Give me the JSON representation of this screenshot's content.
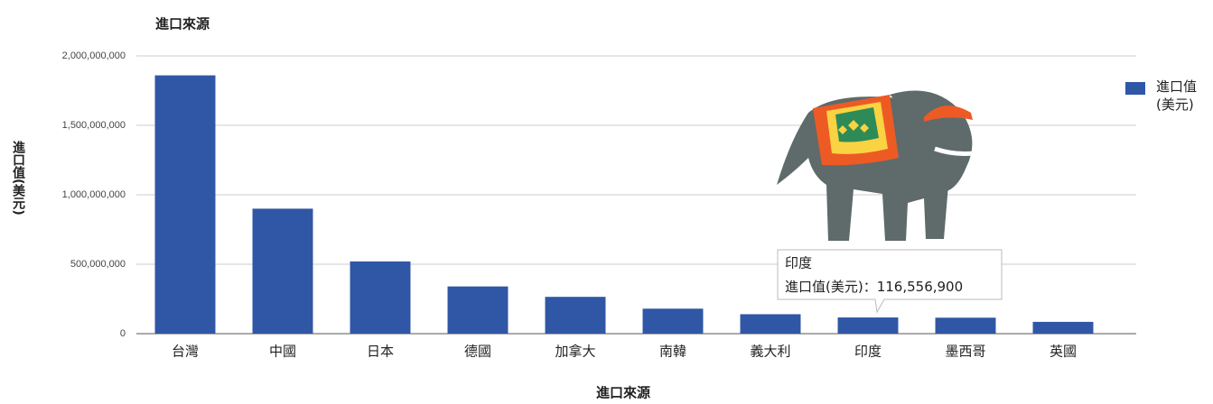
{
  "chart_data": {
    "type": "bar",
    "title": "進口來源",
    "x_label": "進口來源",
    "y_label": "進口值(美元)",
    "categories": [
      "台灣",
      "中國",
      "日本",
      "德國",
      "加拿大",
      "南韓",
      "義大利",
      "印度",
      "墨西哥",
      "英國"
    ],
    "series": [
      {
        "name": "進口值(美元)",
        "color": "#3057a6",
        "values": [
          1860000000,
          900000000,
          520000000,
          340000000,
          265000000,
          180000000,
          140000000,
          116556900,
          115000000,
          85000000
        ],
        "value_labels": [
          null,
          null,
          null,
          null,
          null,
          null,
          null,
          "116,556,900",
          null,
          null
        ]
      }
    ],
    "ylim": [
      0,
      2000000000
    ],
    "yticks": [
      0,
      {
        "value": 500000000,
        "label": "500,000,000"
      },
      {
        "value": 1000000000,
        "label": "1,000,000,000"
      },
      {
        "value": 1500000000,
        "label": "1,500,000,000"
      },
      {
        "value": 2000000000,
        "label": "2,000,000,000"
      }
    ],
    "grid": true,
    "legend": "right",
    "tooltip": {
      "label": "進口值(美元)："
    }
  }
}
